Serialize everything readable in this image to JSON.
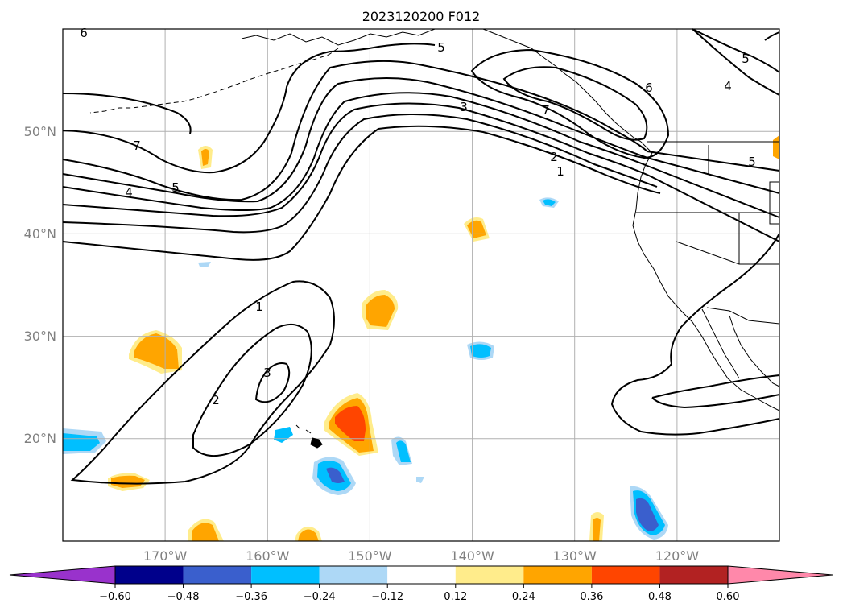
{
  "title": "2023120200 F012",
  "map": {
    "lon_range": [
      -180,
      -110
    ],
    "lat_range": [
      10,
      60
    ],
    "x_tick_labels": [
      "170°W",
      "160°W",
      "150°W",
      "140°W",
      "130°W",
      "120°W"
    ],
    "y_tick_labels": [
      "20°N",
      "30°N",
      "40°N",
      "50°N"
    ],
    "grid": true,
    "contour_labels": [
      "6",
      "5",
      "6",
      "7",
      "3",
      "2",
      "1",
      "4",
      "5",
      "5",
      "7",
      "4",
      "5",
      "1",
      "2",
      "3"
    ]
  },
  "colorbar": {
    "tick_labels": [
      "−0.60",
      "−0.48",
      "−0.36",
      "−0.24",
      "−0.12",
      "0.12",
      "0.24",
      "0.36",
      "0.48",
      "0.60"
    ],
    "levels": [
      -0.6,
      -0.48,
      -0.36,
      -0.24,
      -0.12,
      0.12,
      0.24,
      0.36,
      0.48,
      0.6
    ],
    "colors": [
      "#9932cc",
      "#00008b",
      "#3a5fcd",
      "#00bfff",
      "#add8f6",
      "#ffffff",
      "#ffec8b",
      "#ffa500",
      "#ff4500",
      "#b22222",
      "#ff88aa"
    ],
    "extend": "both"
  }
}
